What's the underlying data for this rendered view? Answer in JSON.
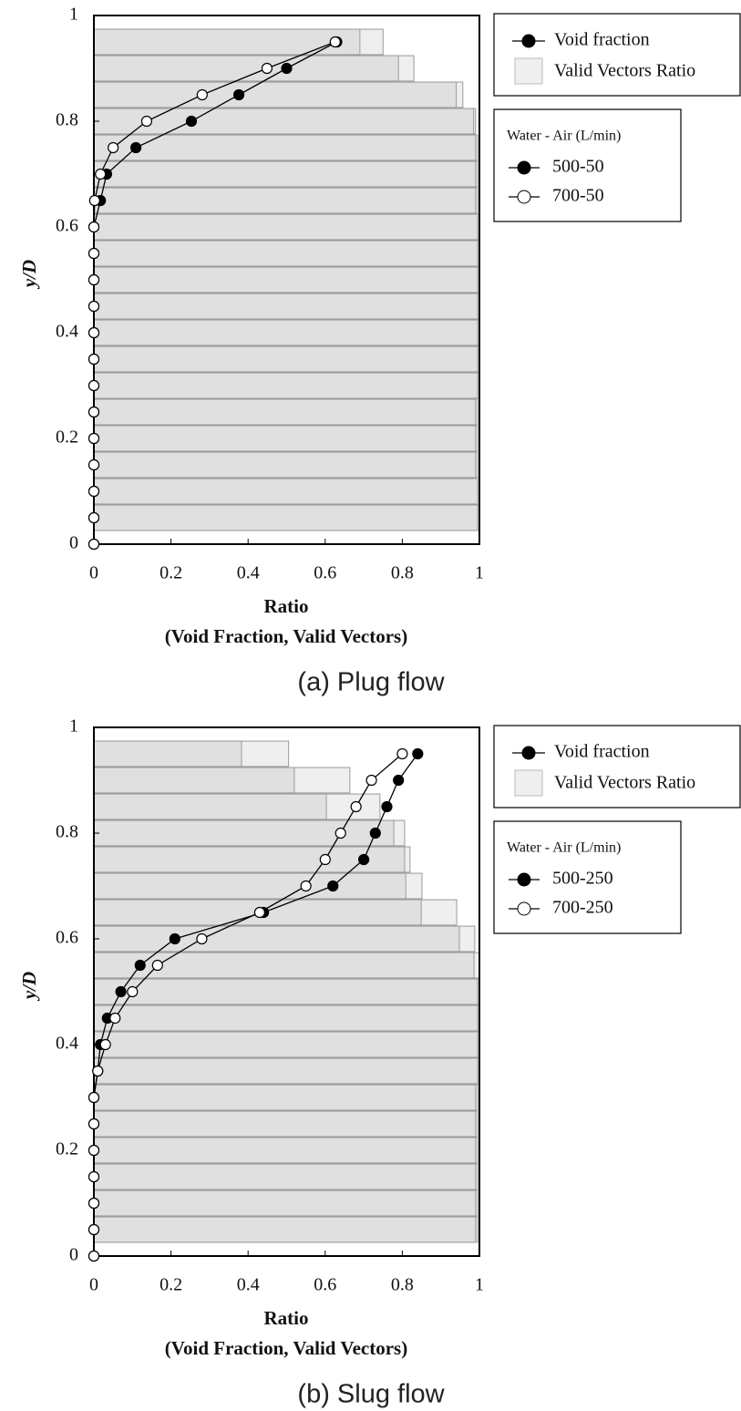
{
  "chart_data": [
    {
      "type": "barh_line",
      "caption": "(a) Plug flow",
      "xlabel": [
        "Ratio",
        "(Void Fraction, Valid Vectors)"
      ],
      "ylabel": "y/D",
      "xlim": [
        0,
        1
      ],
      "ylim": [
        0,
        1
      ],
      "xticks": [
        0,
        0.2,
        0.4,
        0.6,
        0.8,
        1
      ],
      "yticks": [
        0,
        0.2,
        0.4,
        0.6,
        0.8,
        1
      ],
      "bars": {
        "name": "Valid Vectors Ratio",
        "y": [
          0.05,
          0.1,
          0.15,
          0.2,
          0.25,
          0.3,
          0.35,
          0.4,
          0.45,
          0.5,
          0.55,
          0.6,
          0.65,
          0.7,
          0.75,
          0.8,
          0.85,
          0.9,
          0.95
        ],
        "series": [
          {
            "color": "#efefef",
            "values": [
              1,
              0.995,
              0.995,
              0.995,
              0.995,
              1,
              1,
              1,
              1,
              1,
              1,
              1,
              0.995,
              0.995,
              0.995,
              0.99,
              0.957,
              0.83,
              0.75
            ]
          },
          {
            "color": "#e0e0e0",
            "values": [
              0.995,
              0.995,
              0.99,
              0.99,
              0.99,
              0.995,
              0.995,
              0.995,
              0.995,
              0.995,
              0.995,
              0.995,
              0.99,
              0.99,
              0.99,
              0.985,
              0.94,
              0.79,
              0.69
            ]
          }
        ]
      },
      "lines": {
        "name": "Void fraction",
        "legend_title": "Water - Air (L/min)",
        "y": [
          0,
          0.05,
          0.1,
          0.15,
          0.2,
          0.25,
          0.3,
          0.35,
          0.4,
          0.45,
          0.5,
          0.55,
          0.6,
          0.65,
          0.7,
          0.75,
          0.8,
          0.85,
          0.9,
          0.95
        ],
        "series": [
          {
            "name": "500-50",
            "color": "#000000",
            "marker_fill": "#000000",
            "values": [
              0,
              0,
              0,
              0,
              0,
              0,
              0,
              0,
              0,
              0,
              0,
              0,
              0,
              0.017,
              0.033,
              0.109,
              0.253,
              0.376,
              0.5,
              0.63
            ]
          },
          {
            "name": "700-50",
            "color": "#000000",
            "marker_fill": "#ffffff",
            "values": [
              0,
              0,
              0,
              0,
              0,
              0,
              0,
              0,
              0,
              0,
              0,
              0,
              0,
              0.002,
              0.017,
              0.05,
              0.137,
              0.281,
              0.449,
              0.626
            ]
          }
        ]
      }
    },
    {
      "type": "barh_line",
      "caption": "(b) Slug flow",
      "xlabel": [
        "Ratio",
        "(Void Fraction, Valid Vectors)"
      ],
      "ylabel": "y/D",
      "xlim": [
        0,
        1
      ],
      "ylim": [
        0,
        1
      ],
      "xticks": [
        0,
        0.2,
        0.4,
        0.6,
        0.8,
        1
      ],
      "yticks": [
        0,
        0.2,
        0.4,
        0.6,
        0.8,
        1
      ],
      "bars": {
        "name": "Valid Vectors Ratio",
        "y": [
          0.05,
          0.1,
          0.15,
          0.2,
          0.25,
          0.3,
          0.35,
          0.4,
          0.45,
          0.5,
          0.55,
          0.6,
          0.65,
          0.7,
          0.75,
          0.8,
          0.85,
          0.9,
          0.95
        ],
        "series": [
          {
            "color": "#efefef",
            "values": [
              0.995,
              0.995,
              0.995,
              0.995,
              0.995,
              0.995,
              1,
              1,
              1,
              1,
              1,
              0.988,
              0.941,
              0.851,
              0.82,
              0.806,
              0.742,
              0.664,
              0.505
            ]
          },
          {
            "color": "#e0e0e0",
            "values": [
              0.99,
              0.99,
              0.99,
              0.99,
              0.99,
              0.99,
              0.995,
              0.995,
              0.995,
              0.995,
              0.986,
              0.948,
              0.849,
              0.809,
              0.806,
              0.778,
              0.603,
              0.52,
              0.383
            ]
          }
        ]
      },
      "lines": {
        "name": "Void fraction",
        "legend_title": "Water - Air (L/min)",
        "y": [
          0,
          0.05,
          0.1,
          0.15,
          0.2,
          0.25,
          0.3,
          0.35,
          0.4,
          0.45,
          0.5,
          0.55,
          0.6,
          0.65,
          0.7,
          0.75,
          0.8,
          0.85,
          0.9,
          0.95
        ],
        "series": [
          {
            "name": "500-250",
            "color": "#000000",
            "marker_fill": "#000000",
            "values": [
              0,
              0,
              0,
              0,
              0,
              0,
              0,
              0.01,
              0.017,
              0.035,
              0.07,
              0.12,
              0.21,
              0.44,
              0.62,
              0.7,
              0.73,
              0.76,
              0.79,
              0.84
            ]
          },
          {
            "name": "700-250",
            "color": "#000000",
            "marker_fill": "#ffffff",
            "values": [
              0,
              0,
              0,
              0,
              0,
              0,
              0,
              0.01,
              0.03,
              0.055,
              0.1,
              0.165,
              0.28,
              0.43,
              0.55,
              0.6,
              0.64,
              0.68,
              0.72,
              0.8
            ]
          }
        ]
      }
    }
  ]
}
